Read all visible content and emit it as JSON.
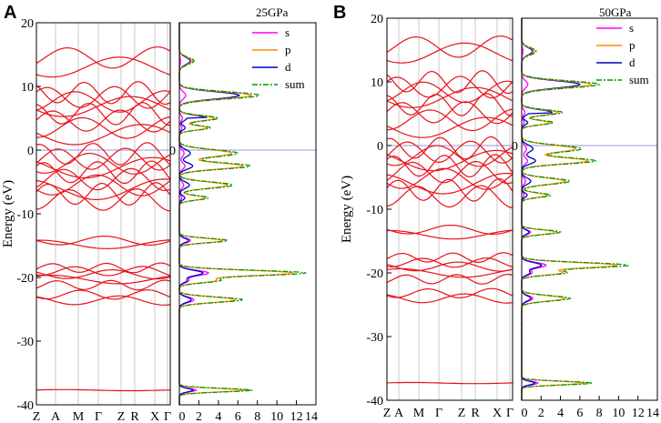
{
  "panels": [
    {
      "id": "A",
      "panel_label": "A",
      "pressure_label": "25GPa",
      "bands": {
        "ylabel": "Energy (eV)",
        "ylim": [
          -40,
          20
        ],
        "yticks": [
          "20",
          "10",
          "0",
          "-10",
          "-20",
          "-30",
          "-40"
        ],
        "kpoints": [
          "Z",
          "A",
          "M",
          "Γ",
          "Z",
          "R",
          "X",
          "Γ"
        ],
        "fermi_label": "0",
        "band_groups": [
          {
            "name": "core",
            "levels": [
              -37.7
            ]
          },
          {
            "name": "deep",
            "levels": [
              -23.6,
              -22.7,
              -21.2,
              -20.3,
              -19.5,
              -19.0,
              -18.5,
              -14.8,
              -14.2
            ]
          },
          {
            "name": "valence",
            "levels": [
              -7.8,
              -6.9,
              -6.2,
              -5.5,
              -4.6,
              -3.5,
              -2.8,
              -2.1,
              -1.4,
              -0.6
            ]
          },
          {
            "name": "conduction",
            "levels": [
              2.4,
              3.5,
              4.6,
              5.7,
              6.8,
              7.6,
              8.3,
              9.0,
              13.0,
              14.5
            ]
          }
        ]
      },
      "dos": {
        "xticks": [
          "0",
          "2",
          "4",
          "6",
          "8",
          "10",
          "12",
          "14"
        ],
        "xlim": [
          0,
          14
        ],
        "legend": [
          {
            "label": "s",
            "color": "#ff00ff"
          },
          {
            "label": "p",
            "color": "#ff8c00"
          },
          {
            "label": "d",
            "color": "#0000cc"
          },
          {
            "label": "sum",
            "color": "#009900"
          }
        ],
        "peaks": [
          {
            "e": 14.0,
            "v": 1.5,
            "w": 0.8
          },
          {
            "e": 8.6,
            "v": 8.2,
            "w": 0.8
          },
          {
            "e": 5.0,
            "v": 4.0,
            "w": 0.6
          },
          {
            "e": 3.5,
            "v": 3.2,
            "w": 0.5
          },
          {
            "e": -0.5,
            "v": 6.0,
            "w": 0.8
          },
          {
            "e": -2.5,
            "v": 7.3,
            "w": 0.7
          },
          {
            "e": -5.5,
            "v": 5.5,
            "w": 0.7
          },
          {
            "e": -7.5,
            "v": 3.0,
            "w": 0.5
          },
          {
            "e": -14.2,
            "v": 5.0,
            "w": 0.5
          },
          {
            "e": -19.3,
            "v": 13.0,
            "w": 0.6
          },
          {
            "e": -20.5,
            "v": 4.0,
            "w": 0.5
          },
          {
            "e": -23.5,
            "v": 6.5,
            "w": 0.6
          },
          {
            "e": -37.7,
            "v": 7.5,
            "w": 0.4
          }
        ]
      }
    },
    {
      "id": "B",
      "panel_label": "B",
      "pressure_label": "50GPa",
      "bands": {
        "ylabel": "Energy (eV)",
        "ylim": [
          -40,
          20
        ],
        "yticks": [
          "20",
          "10",
          "0",
          "-10",
          "-20",
          "-30",
          "-40"
        ],
        "kpoints": [
          "Z",
          "A",
          "M",
          "Γ",
          "Z",
          "R",
          "X",
          "Γ"
        ],
        "fermi_label": "0",
        "band_groups": [
          {
            "name": "core",
            "levels": [
              -37.3
            ]
          },
          {
            "name": "deep",
            "levels": [
              -24.0,
              -23.2,
              -21.0,
              -20.0,
              -19.0,
              -18.4,
              -17.6,
              -14.0,
              -13.2
            ]
          },
          {
            "name": "valence",
            "levels": [
              -8.0,
              -7.0,
              -6.0,
              -5.2,
              -4.2,
              -3.2,
              -2.4,
              -1.6,
              -1.0,
              -0.4
            ]
          },
          {
            "name": "conduction",
            "levels": [
              2.8,
              4.0,
              5.2,
              6.4,
              7.5,
              8.4,
              9.2,
              10.0,
              14.5,
              15.5
            ]
          }
        ]
      },
      "dos": {
        "xticks": [
          "0",
          "2",
          "4",
          "6",
          "8",
          "10",
          "12",
          "14"
        ],
        "xlim": [
          0,
          14
        ],
        "legend": [
          {
            "label": "s",
            "color": "#ff00ff"
          },
          {
            "label": "p",
            "color": "#ff8c00"
          },
          {
            "label": "d",
            "color": "#0000cc"
          },
          {
            "label": "sum",
            "color": "#009900"
          }
        ],
        "peaks": [
          {
            "e": 14.8,
            "v": 1.5,
            "w": 0.8
          },
          {
            "e": 9.6,
            "v": 8.0,
            "w": 0.8
          },
          {
            "e": 5.2,
            "v": 4.2,
            "w": 0.6
          },
          {
            "e": 3.6,
            "v": 3.3,
            "w": 0.5
          },
          {
            "e": -0.5,
            "v": 6.2,
            "w": 0.8
          },
          {
            "e": -2.4,
            "v": 7.6,
            "w": 0.7
          },
          {
            "e": -5.6,
            "v": 5.0,
            "w": 0.7
          },
          {
            "e": -7.8,
            "v": 3.0,
            "w": 0.5
          },
          {
            "e": -13.6,
            "v": 4.0,
            "w": 0.5
          },
          {
            "e": -18.8,
            "v": 11.0,
            "w": 0.6
          },
          {
            "e": -20.0,
            "v": 4.5,
            "w": 0.5
          },
          {
            "e": -24.0,
            "v": 5.0,
            "w": 0.6
          },
          {
            "e": -37.3,
            "v": 7.3,
            "w": 0.4
          }
        ]
      }
    }
  ]
}
